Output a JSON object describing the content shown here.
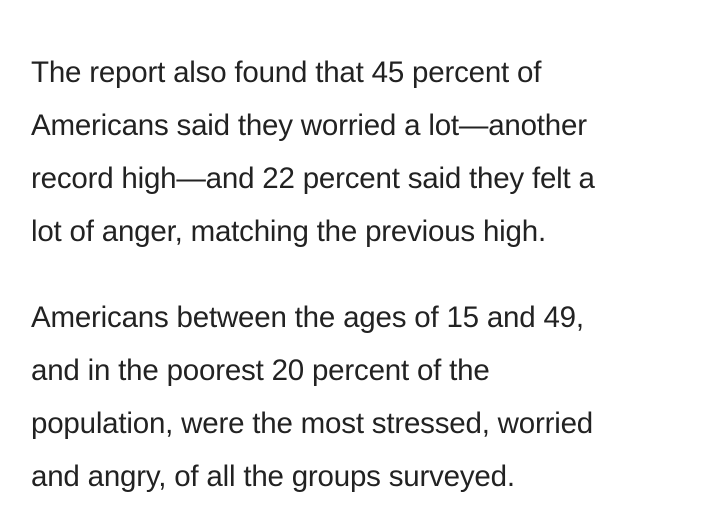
{
  "article": {
    "paragraphs": [
      {
        "lines": [
          "The report also found that 45 percent of",
          "Americans said they worried a lot—another",
          "record high—and 22 percent said they felt a",
          "lot of anger, matching the previous high."
        ]
      },
      {
        "lines": [
          "Americans between the ages of 15 and 49,",
          "and in the poorest 20 percent of the",
          "population, were the most stressed, worried",
          "and angry, of all the groups surveyed."
        ]
      }
    ]
  }
}
